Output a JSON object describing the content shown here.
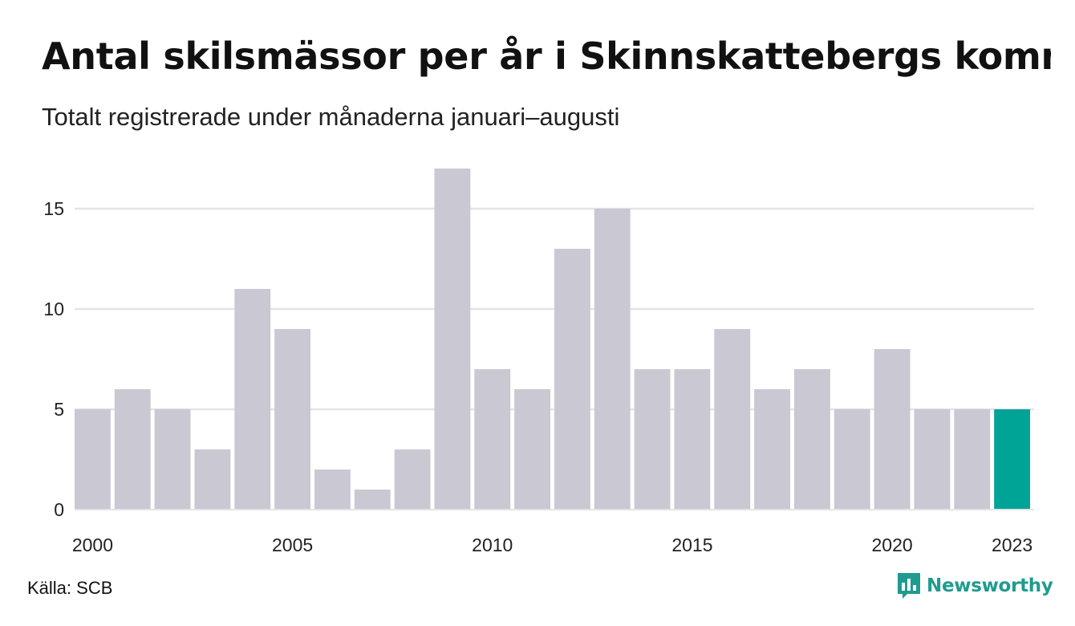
{
  "title": "Antal skilsmässor per år i Skinnskattebergs kommun",
  "subtitle": "Totalt registrerade under månaderna januari–augusti",
  "source": "Källa: SCB",
  "brand": "Newsworthy",
  "colors": {
    "bar": "#c9c8d3",
    "highlight": "#00a497",
    "grid": "#e4e4e8",
    "brand": "#1f9b8f"
  },
  "chart_data": {
    "type": "bar",
    "categories": [
      "2000",
      "2001",
      "2002",
      "2003",
      "2004",
      "2005",
      "2006",
      "2007",
      "2008",
      "2009",
      "2010",
      "2011",
      "2012",
      "2013",
      "2014",
      "2015",
      "2016",
      "2017",
      "2018",
      "2019",
      "2020",
      "2021",
      "2022",
      "2023"
    ],
    "values": [
      5,
      6,
      5,
      3,
      11,
      9,
      2,
      1,
      3,
      17,
      7,
      6,
      13,
      15,
      7,
      7,
      9,
      6,
      7,
      5,
      8,
      5,
      5,
      5
    ],
    "highlight": "2023",
    "x_tick_labels": [
      "2000",
      "2005",
      "2010",
      "2015",
      "2020",
      "2023"
    ],
    "y_ticks": [
      0,
      5,
      10,
      15
    ],
    "ylim": [
      0,
      17
    ],
    "grid": true
  }
}
